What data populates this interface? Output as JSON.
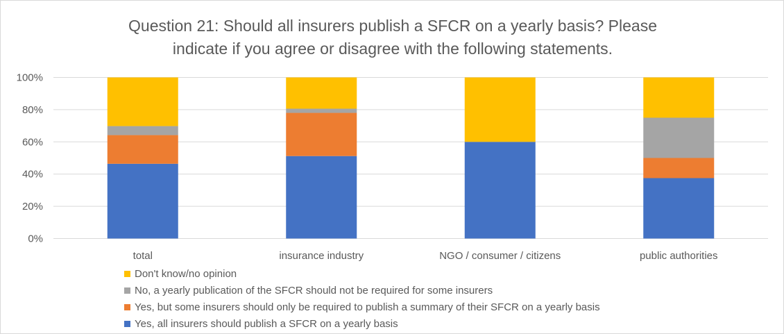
{
  "chart_data": {
    "type": "bar",
    "stacked": true,
    "title_lines": [
      "Question 21: Should all insurers publish a SFCR on a yearly basis? Please",
      "indicate if you agree or disagree with the following statements."
    ],
    "categories": [
      "total",
      "insurance industry",
      "NGO / consumer / citizens",
      "public authorities"
    ],
    "series": [
      {
        "name": "Yes, all insurers should publish a SFCR on a yearly basis",
        "color": "#4472C4",
        "values": [
          46.4,
          51.2,
          60,
          37.5
        ]
      },
      {
        "name": "Yes, but some insurers should only be required to publish a summary of their SFCR on a yearly basis",
        "color": "#ED7D31",
        "values": [
          17.8,
          26.8,
          0,
          12.5
        ]
      },
      {
        "name": "No, a yearly publication of the SFCR should not be required for some insurers",
        "color": "#A5A5A5",
        "values": [
          5.6,
          2.6,
          0,
          25
        ]
      },
      {
        "name": "Don't know/no opinion",
        "color": "#FFC000",
        "values": [
          30.2,
          19.4,
          40,
          25
        ]
      }
    ],
    "ylim": [
      0,
      100
    ],
    "yticks": [
      "0%",
      "20%",
      "40%",
      "60%",
      "80%",
      "100%"
    ],
    "grid": true,
    "legend_position": "bottom"
  }
}
